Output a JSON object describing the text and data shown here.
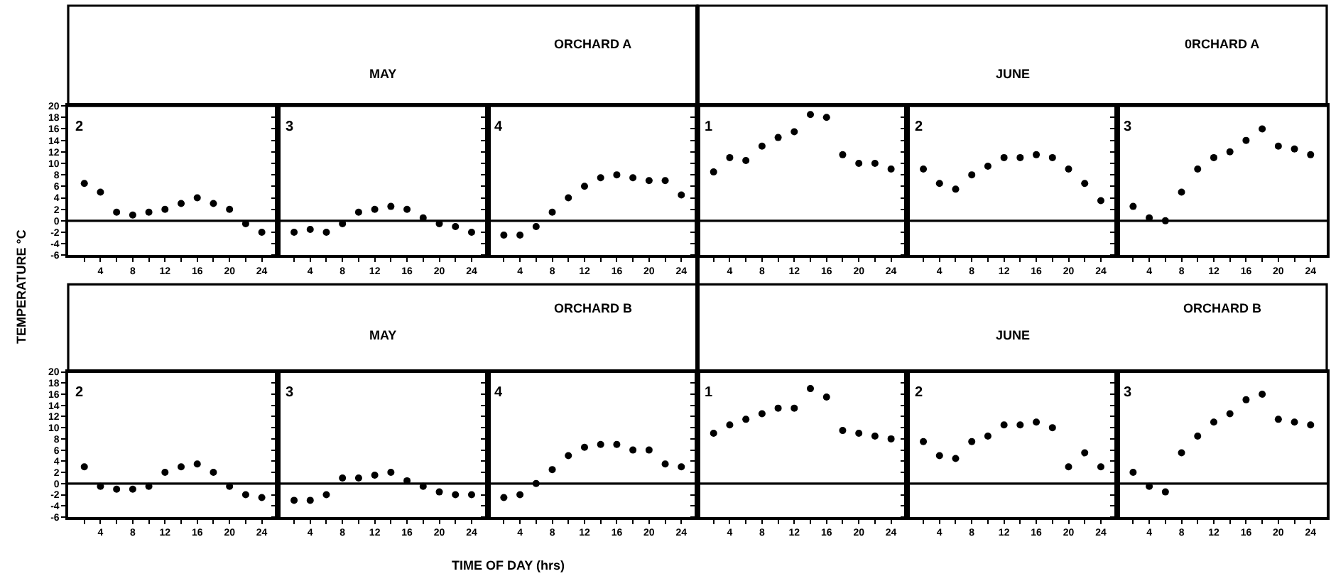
{
  "chart_data": [
    {
      "type": "scatter",
      "ylabel": "TEMPERATURE °C",
      "annotations": [
        "2"
      ],
      "x": [
        2,
        4,
        6,
        8,
        10,
        12,
        14,
        16,
        18,
        20,
        22,
        24
      ],
      "series": [
        {
          "color": "#000000",
          "values": [
            6.5,
            5,
            1.5,
            1,
            1.5,
            2,
            3,
            4,
            3,
            2,
            -0.5,
            -2
          ]
        }
      ],
      "xlim": [
        0,
        26
      ],
      "ylim": [
        -6,
        20
      ],
      "xticks": [
        {
          "value": 2,
          "label": null
        },
        4,
        {
          "value": 6,
          "label": null
        },
        8,
        {
          "value": 10,
          "label": null
        },
        12,
        {
          "value": 14,
          "label": null
        },
        16,
        {
          "value": 18,
          "label": null
        },
        20,
        {
          "value": 22,
          "label": null
        },
        24
      ],
      "yticks": [
        -6,
        -4,
        -2,
        0,
        2,
        4,
        6,
        8,
        10,
        12,
        14,
        16,
        18,
        20
      ],
      "ref_lines": [
        {
          "axis": "y",
          "value": 0
        }
      ],
      "marker": "circle",
      "grid": false
    },
    {
      "type": "scatter",
      "title": "MAY",
      "annotations": [
        "3"
      ],
      "x": [
        2,
        4,
        6,
        8,
        10,
        12,
        14,
        16,
        18,
        20,
        22,
        24
      ],
      "series": [
        {
          "color": "#000000",
          "values": [
            -2,
            -1.5,
            -2,
            -0.5,
            1.5,
            2,
            2.5,
            2,
            0.5,
            -0.5,
            -1,
            -2
          ]
        }
      ],
      "xlim": [
        0,
        26
      ],
      "ylim": [
        -6,
        20
      ],
      "xticks": [
        {
          "value": 2,
          "label": null
        },
        4,
        {
          "value": 6,
          "label": null
        },
        8,
        {
          "value": 10,
          "label": null
        },
        12,
        {
          "value": 14,
          "label": null
        },
        16,
        {
          "value": 18,
          "label": null
        },
        20,
        {
          "value": 22,
          "label": null
        },
        24
      ],
      "yticks": [
        -6,
        -4,
        -2,
        0,
        2,
        4,
        6,
        8,
        10,
        12,
        14,
        16,
        18,
        20
      ],
      "tick_labels": "x",
      "ref_lines": [
        {
          "axis": "y",
          "value": 0
        }
      ],
      "marker": "circle",
      "grid": false
    },
    {
      "type": "scatter",
      "title": "ORCHARD A",
      "annotations": [
        "4"
      ],
      "x": [
        2,
        4,
        6,
        8,
        10,
        12,
        14,
        16,
        18,
        20,
        22,
        24
      ],
      "series": [
        {
          "color": "#000000",
          "values": [
            -2.5,
            -2.5,
            -1,
            1.5,
            4,
            6,
            7.5,
            8,
            7.5,
            7,
            7,
            4.5
          ]
        }
      ],
      "xlim": [
        0,
        26
      ],
      "ylim": [
        -6,
        20
      ],
      "xticks": [
        {
          "value": 2,
          "label": null
        },
        4,
        {
          "value": 6,
          "label": null
        },
        8,
        {
          "value": 10,
          "label": null
        },
        12,
        {
          "value": 14,
          "label": null
        },
        16,
        {
          "value": 18,
          "label": null
        },
        20,
        {
          "value": 22,
          "label": null
        },
        24
      ],
      "yticks": [
        -6,
        -4,
        -2,
        0,
        2,
        4,
        6,
        8,
        10,
        12,
        14,
        16,
        18,
        20
      ],
      "tick_labels": "x",
      "ref_lines": [
        {
          "axis": "y",
          "value": 0
        }
      ],
      "marker": "circle",
      "grid": false
    },
    {
      "type": "scatter",
      "annotations": [
        "1"
      ],
      "x": [
        2,
        4,
        6,
        8,
        10,
        12,
        14,
        16,
        18,
        20,
        22,
        24
      ],
      "series": [
        {
          "color": "#000000",
          "values": [
            8.5,
            11,
            10.5,
            13,
            14.5,
            15.5,
            18.5,
            18,
            11.5,
            10,
            10,
            9
          ]
        }
      ],
      "xlim": [
        0,
        26
      ],
      "ylim": [
        -6,
        20
      ],
      "xticks": [
        {
          "value": 2,
          "label": null
        },
        4,
        {
          "value": 6,
          "label": null
        },
        8,
        {
          "value": 10,
          "label": null
        },
        12,
        {
          "value": 14,
          "label": null
        },
        16,
        {
          "value": 18,
          "label": null
        },
        20,
        {
          "value": 22,
          "label": null
        },
        24
      ],
      "yticks": [
        -6,
        -4,
        -2,
        0,
        2,
        4,
        6,
        8,
        10,
        12,
        14,
        16,
        18,
        20
      ],
      "tick_labels": "x",
      "ref_lines": [
        {
          "axis": "y",
          "value": 0
        }
      ],
      "marker": "circle",
      "grid": false
    },
    {
      "type": "scatter",
      "title": "JUNE",
      "annotations": [
        "2"
      ],
      "x": [
        2,
        4,
        6,
        8,
        10,
        12,
        14,
        16,
        18,
        20,
        22,
        24
      ],
      "series": [
        {
          "color": "#000000",
          "values": [
            9,
            6.5,
            5.5,
            8,
            9.5,
            11,
            11,
            11.5,
            11,
            9,
            6.5,
            3.5
          ]
        }
      ],
      "xlim": [
        0,
        26
      ],
      "ylim": [
        -6,
        20
      ],
      "xticks": [
        {
          "value": 2,
          "label": null
        },
        4,
        {
          "value": 6,
          "label": null
        },
        8,
        {
          "value": 10,
          "label": null
        },
        12,
        {
          "value": 14,
          "label": null
        },
        16,
        {
          "value": 18,
          "label": null
        },
        20,
        {
          "value": 22,
          "label": null
        },
        24
      ],
      "yticks": [
        -6,
        -4,
        -2,
        0,
        2,
        4,
        6,
        8,
        10,
        12,
        14,
        16,
        18,
        20
      ],
      "tick_labels": "x",
      "ref_lines": [
        {
          "axis": "y",
          "value": 0
        }
      ],
      "marker": "circle",
      "grid": false
    },
    {
      "type": "scatter",
      "title": "0RCHARD A",
      "annotations": [
        "3"
      ],
      "x": [
        2,
        4,
        6,
        8,
        10,
        12,
        14,
        16,
        18,
        20,
        22,
        24
      ],
      "series": [
        {
          "color": "#000000",
          "values": [
            2.5,
            0.5,
            0,
            5,
            9,
            11,
            12,
            14,
            16,
            13,
            12.5,
            11.5
          ]
        }
      ],
      "xlim": [
        0,
        26
      ],
      "ylim": [
        -6,
        20
      ],
      "xticks": [
        {
          "value": 2,
          "label": null
        },
        4,
        {
          "value": 6,
          "label": null
        },
        8,
        {
          "value": 10,
          "label": null
        },
        12,
        {
          "value": 14,
          "label": null
        },
        16,
        {
          "value": 18,
          "label": null
        },
        20,
        {
          "value": 22,
          "label": null
        },
        24
      ],
      "yticks": [
        -6,
        -4,
        -2,
        0,
        2,
        4,
        6,
        8,
        10,
        12,
        14,
        16,
        18,
        20
      ],
      "tick_labels": "x",
      "ref_lines": [
        {
          "axis": "y",
          "value": 0
        }
      ],
      "marker": "circle",
      "grid": false
    },
    {
      "type": "scatter",
      "annotations": [
        "2"
      ],
      "x": [
        2,
        4,
        6,
        8,
        10,
        12,
        14,
        16,
        18,
        20,
        22,
        24
      ],
      "series": [
        {
          "color": "#000000",
          "values": [
            3,
            -0.5,
            -1,
            -1,
            -0.5,
            2,
            3,
            3.5,
            2,
            -0.5,
            -2,
            -2.5
          ]
        }
      ],
      "xlim": [
        0,
        26
      ],
      "ylim": [
        -6,
        20
      ],
      "xticks": [
        {
          "value": 2,
          "label": null
        },
        4,
        {
          "value": 6,
          "label": null
        },
        8,
        {
          "value": 10,
          "label": null
        },
        12,
        {
          "value": 14,
          "label": null
        },
        16,
        {
          "value": 18,
          "label": null
        },
        20,
        {
          "value": 22,
          "label": null
        },
        24
      ],
      "yticks": [
        -6,
        -4,
        -2,
        0,
        2,
        4,
        6,
        8,
        10,
        12,
        14,
        16,
        18,
        20
      ],
      "ref_lines": [
        {
          "axis": "y",
          "value": 0
        }
      ],
      "marker": "circle",
      "grid": false
    },
    {
      "type": "scatter",
      "title": "MAY",
      "annotations": [
        "3"
      ],
      "x": [
        2,
        4,
        6,
        8,
        10,
        12,
        14,
        16,
        18,
        20,
        22,
        24
      ],
      "series": [
        {
          "color": "#000000",
          "values": [
            -3,
            -3,
            -2,
            1,
            1,
            1.5,
            2,
            0.5,
            -0.5,
            -1.5,
            -2,
            -2
          ]
        }
      ],
      "xlim": [
        0,
        26
      ],
      "ylim": [
        -6,
        20
      ],
      "xticks": [
        {
          "value": 2,
          "label": null
        },
        4,
        {
          "value": 6,
          "label": null
        },
        8,
        {
          "value": 10,
          "label": null
        },
        12,
        {
          "value": 14,
          "label": null
        },
        16,
        {
          "value": 18,
          "label": null
        },
        20,
        {
          "value": 22,
          "label": null
        },
        24
      ],
      "yticks": [
        -6,
        -4,
        -2,
        0,
        2,
        4,
        6,
        8,
        10,
        12,
        14,
        16,
        18,
        20
      ],
      "tick_labels": "x",
      "ref_lines": [
        {
          "axis": "y",
          "value": 0
        }
      ],
      "marker": "circle",
      "grid": false
    },
    {
      "type": "scatter",
      "title": "ORCHARD B",
      "xlabel": "TIME OF DAY (hrs)",
      "annotations": [
        "4"
      ],
      "x": [
        2,
        4,
        6,
        8,
        10,
        12,
        14,
        16,
        18,
        20,
        22,
        24
      ],
      "series": [
        {
          "color": "#000000",
          "values": [
            -2.5,
            -2,
            0,
            2.5,
            5,
            6.5,
            7,
            7,
            6,
            6,
            3.5,
            3
          ]
        }
      ],
      "xlim": [
        0,
        26
      ],
      "ylim": [
        -6,
        20
      ],
      "xticks": [
        {
          "value": 2,
          "label": null
        },
        4,
        {
          "value": 6,
          "label": null
        },
        8,
        {
          "value": 10,
          "label": null
        },
        12,
        {
          "value": 14,
          "label": null
        },
        16,
        {
          "value": 18,
          "label": null
        },
        20,
        {
          "value": 22,
          "label": null
        },
        24
      ],
      "yticks": [
        -6,
        -4,
        -2,
        0,
        2,
        4,
        6,
        8,
        10,
        12,
        14,
        16,
        18,
        20
      ],
      "tick_labels": "x",
      "ref_lines": [
        {
          "axis": "y",
          "value": 0
        }
      ],
      "marker": "circle",
      "grid": false
    },
    {
      "type": "scatter",
      "annotations": [
        "1"
      ],
      "x": [
        2,
        4,
        6,
        8,
        10,
        12,
        14,
        16,
        18,
        20,
        22,
        24
      ],
      "series": [
        {
          "color": "#000000",
          "values": [
            9,
            10.5,
            11.5,
            12.5,
            13.5,
            13.5,
            17,
            15.5,
            9.5,
            9,
            8.5,
            8
          ]
        }
      ],
      "xlim": [
        0,
        26
      ],
      "ylim": [
        -6,
        20
      ],
      "xticks": [
        {
          "value": 2,
          "label": null
        },
        4,
        {
          "value": 6,
          "label": null
        },
        8,
        {
          "value": 10,
          "label": null
        },
        12,
        {
          "value": 14,
          "label": null
        },
        16,
        {
          "value": 18,
          "label": null
        },
        20,
        {
          "value": 22,
          "label": null
        },
        24
      ],
      "yticks": [
        -6,
        -4,
        -2,
        0,
        2,
        4,
        6,
        8,
        10,
        12,
        14,
        16,
        18,
        20
      ],
      "tick_labels": "x",
      "ref_lines": [
        {
          "axis": "y",
          "value": 0
        }
      ],
      "marker": "circle",
      "grid": false
    },
    {
      "type": "scatter",
      "title": "JUNE",
      "annotations": [
        "2"
      ],
      "x": [
        2,
        4,
        6,
        8,
        10,
        12,
        14,
        16,
        18,
        20,
        22,
        24
      ],
      "series": [
        {
          "color": "#000000",
          "values": [
            7.5,
            5,
            4.5,
            7.5,
            8.5,
            10.5,
            10.5,
            11,
            10,
            3,
            5.5,
            3
          ]
        }
      ],
      "xlim": [
        0,
        26
      ],
      "ylim": [
        -6,
        20
      ],
      "xticks": [
        {
          "value": 2,
          "label": null
        },
        4,
        {
          "value": 6,
          "label": null
        },
        8,
        {
          "value": 10,
          "label": null
        },
        12,
        {
          "value": 14,
          "label": null
        },
        16,
        {
          "value": 18,
          "label": null
        },
        20,
        {
          "value": 22,
          "label": null
        },
        24
      ],
      "yticks": [
        -6,
        -4,
        -2,
        0,
        2,
        4,
        6,
        8,
        10,
        12,
        14,
        16,
        18,
        20
      ],
      "tick_labels": "x",
      "ref_lines": [
        {
          "axis": "y",
          "value": 0
        }
      ],
      "marker": "circle",
      "grid": false
    },
    {
      "type": "scatter",
      "title": "ORCHARD B",
      "annotations": [
        "3"
      ],
      "x": [
        2,
        4,
        6,
        8,
        10,
        12,
        14,
        16,
        18,
        20,
        22,
        24
      ],
      "series": [
        {
          "color": "#000000",
          "values": [
            2,
            -0.5,
            -1.5,
            5.5,
            8.5,
            11,
            12.5,
            15,
            16,
            11.5,
            11,
            10.5
          ]
        }
      ],
      "xlim": [
        0,
        26
      ],
      "ylim": [
        -6,
        20
      ],
      "xticks": [
        {
          "value": 2,
          "label": null
        },
        4,
        {
          "value": 6,
          "label": null
        },
        8,
        {
          "value": 10,
          "label": null
        },
        12,
        {
          "value": 14,
          "label": null
        },
        16,
        {
          "value": 18,
          "label": null
        },
        20,
        {
          "value": 22,
          "label": null
        },
        24
      ],
      "yticks": [
        -6,
        -4,
        -2,
        0,
        2,
        4,
        6,
        8,
        10,
        12,
        14,
        16,
        18,
        20
      ],
      "tick_labels": "x",
      "ref_lines": [
        {
          "axis": "y",
          "value": 0
        }
      ],
      "marker": "circle",
      "grid": false
    }
  ]
}
